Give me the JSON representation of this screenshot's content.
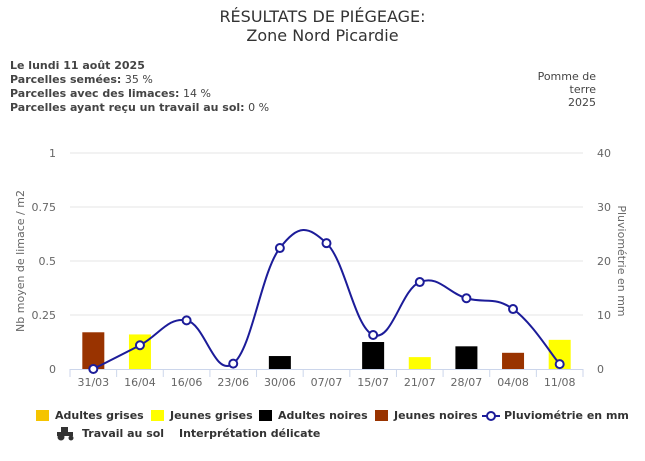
{
  "title": "RÉSULTATS DE PIÉGEAGE:",
  "subtitle": "Zone Nord Picardie",
  "info": {
    "date": "Le lundi 11 août 2025",
    "sown_label": "Parcelles semées",
    "sown_value": "35 %",
    "slugs_label": "Parcelles avec des limaces",
    "slugs_value": "14 %",
    "soil_label": "Parcelles ayant reçu un travail au sol",
    "soil_value": "0 %"
  },
  "crop": {
    "line1": "Pomme de",
    "line2": "terre",
    "line3": "2025"
  },
  "legend": {
    "adultes_grises": "Adultes grises",
    "jeunes_grises": "Jeunes grises",
    "adultes_noires": "Adultes noires",
    "jeunes_noires": "Jeunes noires",
    "pluvio": "Pluviométrie en mm",
    "travail": "Travail au sol",
    "interpretation": "Interprétation délicate"
  },
  "colors": {
    "adultes_grises": "#F5C400",
    "jeunes_grises": "#FFFF00",
    "adultes_noires": "#000000",
    "jeunes_noires": "#993300",
    "pluvio": "#1C1C99"
  },
  "chart_data": {
    "type": "bar",
    "categories": [
      "31/03",
      "16/04",
      "16/06",
      "23/06",
      "30/06",
      "07/07",
      "15/07",
      "21/07",
      "28/07",
      "04/08",
      "11/08"
    ],
    "ylabel": "Nb moyen de limace / m2",
    "y2label": "Pluviométrie en mm",
    "ylim": [
      0,
      1
    ],
    "y2lim": [
      0,
      40
    ],
    "yticks": [
      "0",
      "0.25",
      "0.5",
      "0.75",
      "1"
    ],
    "y2ticks": [
      "0",
      "10",
      "20",
      "30",
      "40"
    ],
    "bars": [
      {
        "cat": "31/03",
        "type": "jeunes_noires",
        "value": 0.17
      },
      {
        "cat": "16/04",
        "type": "jeunes_grises",
        "value": 0.16
      },
      {
        "cat": "30/06",
        "type": "adultes_noires",
        "value": 0.06
      },
      {
        "cat": "15/07",
        "type": "adultes_noires",
        "value": 0.125
      },
      {
        "cat": "21/07",
        "type": "jeunes_grises",
        "value": 0.055
      },
      {
        "cat": "28/07",
        "type": "adultes_noires",
        "value": 0.105
      },
      {
        "cat": "04/08",
        "type": "jeunes_noires",
        "value": 0.075
      },
      {
        "cat": "11/08",
        "type": "jeunes_grises",
        "value": 0.135
      }
    ],
    "rain": [
      0,
      4.4,
      9,
      1,
      22.4,
      23.3,
      6.3,
      16.1,
      13.1,
      11.1,
      0.9
    ]
  }
}
